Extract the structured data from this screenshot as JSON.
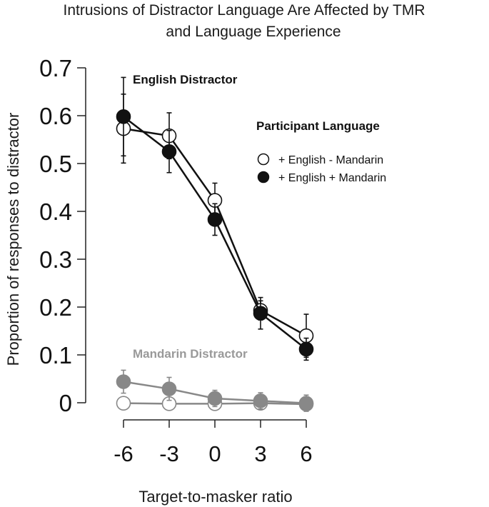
{
  "chart_data": {
    "type": "line",
    "title": [
      "Intrusions of Distractor Language Are Affected by TMR",
      "and Language Experience"
    ],
    "xlabel": "Target-to-masker ratio",
    "ylabel": "Proportion of responses to distractor",
    "x": [
      -6,
      -3,
      0,
      3,
      6
    ],
    "x_tick_labels": [
      "-6",
      "-3",
      "0",
      "3",
      "6"
    ],
    "ylim": [
      0,
      0.7
    ],
    "y_ticks": [
      0,
      0.1,
      0.2,
      0.3,
      0.4,
      0.5,
      0.6,
      0.7
    ],
    "y_tick_labels": [
      "0",
      "0.1",
      "0.2",
      "0.3",
      "0.4",
      "0.5",
      "0.6",
      "0.7"
    ],
    "grid": false,
    "legend": {
      "title": "Participant Language",
      "placement": "upper-right",
      "entries": [
        {
          "label": "+ English - Mandarin",
          "marker": "open-circle"
        },
        {
          "label": "+ English + Mandarin",
          "marker": "filled-circle"
        }
      ]
    },
    "annotations": [
      {
        "text": "English Distractor",
        "color": "#111111"
      },
      {
        "text": "Mandarin Distractor",
        "color": "#999999"
      }
    ],
    "series": [
      {
        "group": "English Distractor",
        "participants": "+ English - Mandarin",
        "marker": "open",
        "color": "#111111",
        "values": [
          0.573,
          0.558,
          0.423,
          0.193,
          0.14
        ],
        "errors": [
          0.072,
          0.048,
          0.036,
          0.02,
          0.045
        ]
      },
      {
        "group": "English Distractor",
        "participants": "+ English + Mandarin",
        "marker": "filled",
        "color": "#111111",
        "values": [
          0.598,
          0.525,
          0.383,
          0.187,
          0.112
        ],
        "errors": [
          0.082,
          0.044,
          0.033,
          0.033,
          0.023
        ]
      },
      {
        "group": "Mandarin Distractor",
        "participants": "+ English - Mandarin",
        "marker": "open",
        "color": "#888888",
        "values": [
          -0.001,
          -0.002,
          -0.002,
          -0.001,
          -0.003
        ],
        "errors": [
          0.0,
          0.0,
          0.0,
          0.0,
          0.0
        ]
      },
      {
        "group": "Mandarin Distractor",
        "participants": "+ English + Mandarin",
        "marker": "filled",
        "color": "#888888",
        "values": [
          0.044,
          0.029,
          0.009,
          0.004,
          -0.001
        ],
        "errors": [
          0.024,
          0.024,
          0.017,
          0.017,
          0.017
        ]
      }
    ]
  }
}
